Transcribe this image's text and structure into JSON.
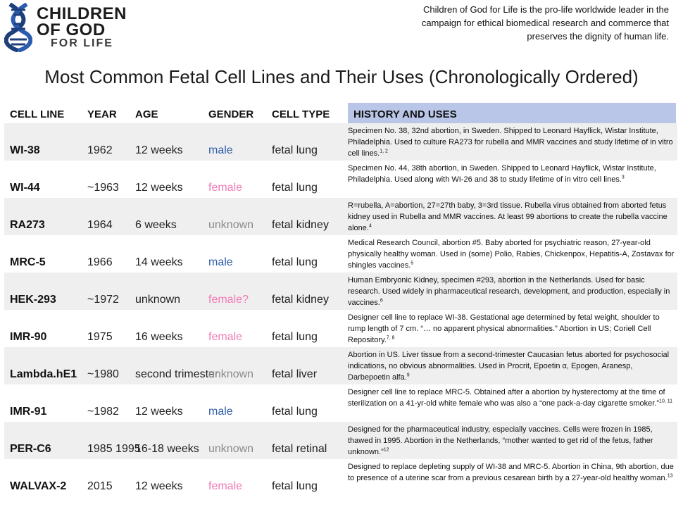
{
  "logo": {
    "line1": "CHILDREN",
    "line2": "OF GOD",
    "line3": "FOR LIFE"
  },
  "tagline": "Children of God for Life is the pro-life worldwide leader in the campaign for ethical biomedical research and commerce that preserves the dignity of human life.",
  "title": "Most Common Fetal Cell Lines and Their Uses (Chronologically Ordered)",
  "colors": {
    "male": "#2f5fa8",
    "female": "#f07bb6",
    "unknown": "#8a8a8a",
    "header_bg": "#b9c6e8",
    "row_shade": "#efefef"
  },
  "headers": {
    "cell_line": "CELL LINE",
    "year": "YEAR",
    "age": "AGE",
    "gender": "GENDER",
    "cell_type": "CELL TYPE",
    "history": "HISTORY AND USES"
  },
  "rows": [
    {
      "name": "WI-38",
      "year": "1962",
      "age": "12 weeks",
      "gender": "male",
      "gender_color": "#2f5fa8",
      "cell_type": "fetal lung",
      "history": "Specimen No. 38, 32nd abortion, in Sweden. Shipped to Leonard Hayflick, Wistar Institute, Philadelphia. Used to culture RA273 for rubella and MMR vaccines and study lifetime of in vitro cell lines.",
      "notes": "1, 2"
    },
    {
      "name": "WI-44",
      "year": "~1963",
      "age": "12 weeks",
      "gender": "female",
      "gender_color": "#f07bb6",
      "cell_type": "fetal lung",
      "history": "Specimen No. 44, 38th abortion, in Sweden. Shipped to Leonard Hayflick, Wistar Institute, Philadelphia. Used along with WI-26 and 38 to study lifetime of in vitro cell lines.",
      "notes": "3"
    },
    {
      "name": "RA273",
      "year": "1964",
      "age": "6 weeks",
      "gender": "unknown",
      "gender_color": "#8a8a8a",
      "cell_type": "fetal kidney",
      "history": "R=rubella, A=abortion, 27=27th baby, 3=3rd tissue.  Rubella virus obtained from aborted fetus kidney used in Rubella and MMR vaccines. At least 99 abortions to create the rubella vaccine alone.",
      "notes": "4"
    },
    {
      "name": "MRC-5",
      "year": "1966",
      "age": "14 weeks",
      "gender": "male",
      "gender_color": "#2f5fa8",
      "cell_type": "fetal lung",
      "history": "Medical Research Council, abortion #5. Baby aborted for psychiatric reason, 27-year-old physically healthy woman. Used in (some) Polio, Rabies, Chickenpox, Hepatitis-A, Zostavax for shingles vaccines.",
      "notes": "5"
    },
    {
      "name": "HEK-293",
      "year": "~1972",
      "age": "unknown",
      "gender": "female?",
      "gender_color": "#f07bb6",
      "cell_type": "fetal kidney",
      "history": "Human Embryonic Kidney, specimen #293, abortion in the Netherlands. Used for basic research. Used widely in pharmaceutical research, development, and production, especially in vaccines.",
      "notes": "6"
    },
    {
      "name": "IMR-90",
      "year": "1975",
      "age": "16 weeks",
      "gender": "female",
      "gender_color": "#f07bb6",
      "cell_type": "fetal lung",
      "history": "Designer cell line to replace WI-38. Gestational age determined by fetal weight, shoulder to rump length of 7 cm. “… no apparent physical abnormalities.” Abortion in US; Coriell Cell Repository.",
      "notes": "7, 8"
    },
    {
      "name": "Lambda.hE1",
      "year": "~1980",
      "age": "second trimester",
      "gender": "unknown",
      "gender_color": "#8a8a8a",
      "cell_type": "fetal liver",
      "history": "Abortion in US. Liver tissue from a second-trimester Caucasian fetus aborted for psychosocial indications, no obvious abnormalities. Used in Procrit, Epoetin α, Epogen, Aranesp, Darbepoetin alfa.",
      "notes": "9"
    },
    {
      "name": "IMR-91",
      "year": "~1982",
      "age": "12 weeks",
      "gender": "male",
      "gender_color": "#2f5fa8",
      "cell_type": "fetal lung",
      "history": "Designer cell line to replace MRC-5. Obtained after a abortion by hysterectomy at the time of sterilization on a 41-yr-old white female who was also a “one pack-a-day cigarette smoker.”",
      "notes": "10, 11"
    },
    {
      "name": "PER-C6",
      "year": "1985 1995",
      "age": "16-18 weeks",
      "gender": "unknown",
      "gender_color": "#8a8a8a",
      "cell_type": "fetal retinal",
      "history": "Designed for the pharmaceutical industry, especially vaccines. Cells were frozen in 1985, thawed in 1995. Abortion in the Netherlands, “mother wanted to get rid of the fetus, father unknown.”",
      "notes": "12"
    },
    {
      "name": "WALVAX-2",
      "year": "2015",
      "age": "12 weeks",
      "gender": "female",
      "gender_color": "#f07bb6",
      "cell_type": "fetal lung",
      "history": "Designed to replace depleting supply of WI-38 and MRC-5. Abortion in China, 9th abortion, due to presence of a uterine scar from a previous cesarean birth by a 27-year-old healthy woman.",
      "notes": "13"
    }
  ]
}
